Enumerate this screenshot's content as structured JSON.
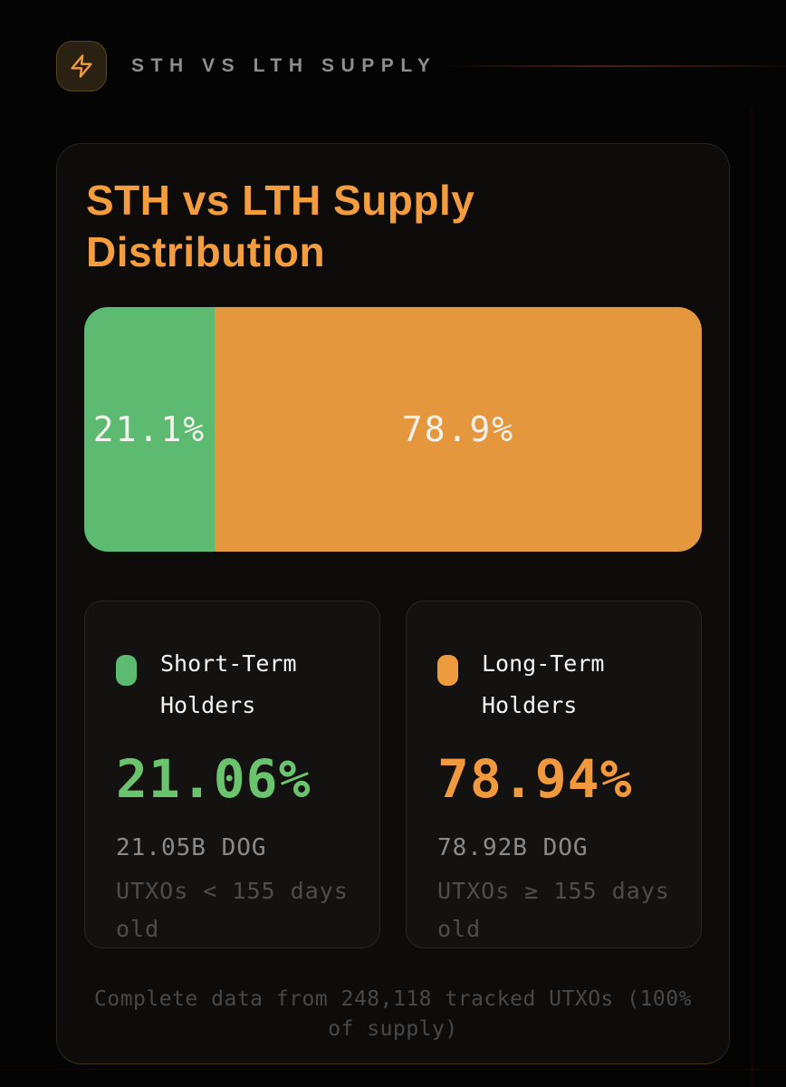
{
  "header": {
    "label": "STH VS LTH SUPPLY",
    "icon": "lightning-icon",
    "accent_color": "#f19a3b"
  },
  "panel": {
    "title_line1": "STH vs LTH Supply",
    "title_line2": "Distribution"
  },
  "chart_data": {
    "type": "bar",
    "orientation": "horizontal_stacked",
    "title": "STH vs LTH Supply Distribution",
    "categories": [
      "Short-Term Holders",
      "Long-Term Holders"
    ],
    "values": [
      21.1,
      78.9
    ],
    "bar_labels": [
      "21.1%",
      "78.9%"
    ],
    "colors": [
      "#5dbb71",
      "#e5973e"
    ],
    "xlim": [
      0,
      100
    ],
    "legend_position": "below",
    "grid": false
  },
  "stats": [
    {
      "label": "Short-Term Holders",
      "percent": "21.06%",
      "amount": "21.05B DOG",
      "description": "UTXOs < 155 days old",
      "color": "#6ac46e"
    },
    {
      "label": "Long-Term Holders",
      "percent": "78.94%",
      "amount": "78.92B DOG",
      "description": "UTXOs ≥ 155 days old",
      "color": "#f0993d"
    }
  ],
  "footer": {
    "note": "Complete data from 248,118 tracked UTXOs (100% of supply)"
  }
}
